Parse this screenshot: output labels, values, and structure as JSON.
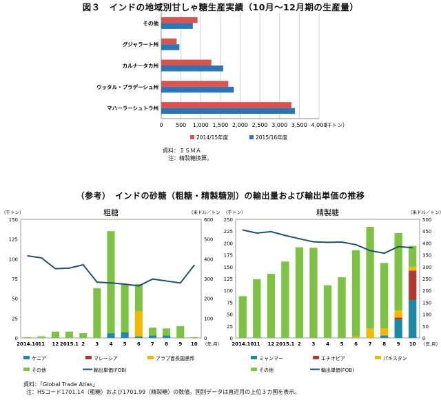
{
  "header": {
    "title": "図３　インドの地域別甘しゃ糖生産実績（10月～12月期の生産量）",
    "source_label": "資料：ＩＳＭＡ",
    "source_note": "注：精製糖換算。"
  },
  "section2": {
    "title": "（参考）　インドの砂糖（粗糖・精製糖別）の輸出量および輸出単価の推移"
  },
  "footer": {
    "source": "資料：「Global Trade Atlas」",
    "note": "注：HSコード1701.14（粗糖）および1701.99（精製糖）の数値。国別データは直近月の上位３カ国を表示。"
  },
  "colors": {
    "s2014": "#d9534f",
    "s2015": "#2e75b6",
    "kenya": "#1a8aa6",
    "malaysia": "#b03a2e",
    "uae": "#f5b800",
    "other": "#7dc242",
    "price": "#1f4e6e",
    "myanmar": "#1a8aa6",
    "ethiopia": "#b03a2e",
    "pakistan": "#f5b800"
  },
  "chart_data": [
    {
      "type": "bar",
      "orientation": "horizontal",
      "categories": [
        "その他",
        "グジャラート州",
        "カルナータカ州",
        "ウッタル・プラデーシュ州",
        "マハーラーシュトラ州"
      ],
      "series": [
        {
          "name": "2014/15年度",
          "values": [
            920,
            390,
            1270,
            1700,
            3300
          ]
        },
        {
          "name": "2015/16年度",
          "values": [
            800,
            460,
            1570,
            1840,
            3390
          ]
        }
      ],
      "xlim": [
        0,
        4000
      ],
      "xticks": [
        "0",
        "500",
        "1,000",
        "1,500",
        "2,000",
        "2,500",
        "3,000",
        "3,500",
        "4,000"
      ],
      "xunit": "（千トン）",
      "grid": true,
      "legend": "bottom"
    },
    {
      "type": "bar",
      "stacked": true,
      "title": "粗糖",
      "categories": [
        "2014.10",
        "11",
        "12",
        "2015.1",
        "2",
        "3",
        "4",
        "5",
        "6",
        "7",
        "8",
        "9",
        "10"
      ],
      "series": [
        {
          "name": "ケニア",
          "values": [
            0,
            0,
            0,
            0,
            0,
            0,
            6,
            7,
            2,
            3,
            3,
            0,
            0
          ]
        },
        {
          "name": "マレーシア",
          "values": [
            0,
            0,
            0,
            0,
            0,
            0,
            0,
            0,
            0,
            0,
            0,
            0,
            0
          ]
        },
        {
          "name": "アラブ首長国連邦",
          "values": [
            0,
            0,
            0,
            0,
            0,
            0,
            0,
            0,
            32,
            0,
            0,
            0,
            0
          ]
        },
        {
          "name": "その他",
          "values": [
            1,
            2,
            8,
            8,
            6,
            63,
            129,
            61,
            34,
            10,
            9,
            15,
            1
          ]
        }
      ],
      "line": {
        "name": "輸出単価(FOB)",
        "values": [
          415,
          405,
          350,
          353,
          370,
          282,
          278,
          272,
          263,
          298,
          288,
          278,
          368
        ]
      },
      "ylim_left": [
        0,
        150
      ],
      "ylim_right": [
        0,
        600
      ],
      "yticks_left": [
        "0",
        "25",
        "50",
        "75",
        "100",
        "125",
        "150"
      ],
      "yticks_right": [
        "0",
        "100",
        "200",
        "300",
        "400",
        "500",
        "600"
      ],
      "yunit_left": "（千トン）",
      "yunit_right": "（米ドル／トン）",
      "xunit": "（年.月）",
      "legend": "bottom"
    },
    {
      "type": "bar",
      "stacked": true,
      "title": "精製糖",
      "categories": [
        "2014.10",
        "11",
        "12",
        "2015.1",
        "2",
        "3",
        "4",
        "5",
        "6",
        "7",
        "8",
        "9",
        "10"
      ],
      "series": [
        {
          "name": "ミャンマー",
          "values": [
            0,
            0,
            0,
            0,
            0,
            0,
            0,
            0,
            0,
            0,
            5,
            38,
            80
          ]
        },
        {
          "name": "エチオピア",
          "values": [
            0,
            0,
            0,
            0,
            0,
            0,
            0,
            0,
            0,
            0,
            0,
            5,
            62
          ]
        },
        {
          "name": "パキスタン",
          "values": [
            0,
            0,
            0,
            0,
            0,
            0,
            0,
            0,
            3,
            20,
            15,
            15,
            8
          ]
        },
        {
          "name": "その他",
          "values": [
            88,
            124,
            135,
            161,
            191,
            190,
            111,
            128,
            182,
            214,
            138,
            163,
            44
          ]
        }
      ],
      "line": {
        "name": "輸出単価(FOB)",
        "values": [
          455,
          442,
          448,
          432,
          418,
          405,
          403,
          404,
          393,
          368,
          357,
          385,
          380
        ]
      },
      "ylim_left": [
        0,
        250
      ],
      "ylim_right": [
        0,
        500
      ],
      "yticks_left": [
        "0",
        "25",
        "50",
        "75",
        "100",
        "125",
        "150",
        "175",
        "200",
        "225",
        "250"
      ],
      "yticks_right": [
        "0",
        "50",
        "100",
        "150",
        "200",
        "250",
        "300",
        "350",
        "400",
        "450",
        "500"
      ],
      "yunit_left": "（千トン）",
      "yunit_right": "（米ドル／トン）",
      "xunit": "（年.月）",
      "legend": "bottom"
    }
  ]
}
